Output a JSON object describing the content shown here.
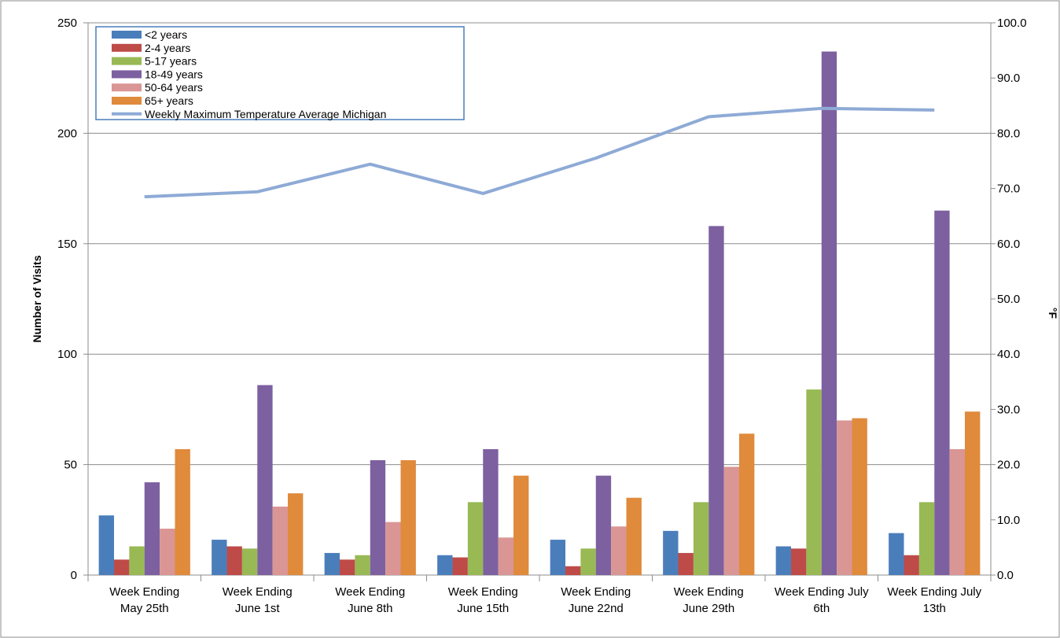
{
  "chart_data": {
    "type": "bar",
    "categories": [
      [
        "Week Ending",
        "May 25th"
      ],
      [
        "Week Ending",
        "June 1st"
      ],
      [
        "Week Ending",
        "June 8th"
      ],
      [
        "Week Ending",
        "June 15th"
      ],
      [
        "Week Ending",
        "June 22nd"
      ],
      [
        "Week Ending",
        "June 29th"
      ],
      [
        "Week Ending July",
        "6th"
      ],
      [
        "Week Ending July",
        "13th"
      ]
    ],
    "series": [
      {
        "name": "<2 years",
        "color": "#4a7ebb",
        "values": [
          27,
          16,
          10,
          9,
          16,
          20,
          13,
          19
        ]
      },
      {
        "name": "2-4 years",
        "color": "#be4b48",
        "values": [
          7,
          13,
          7,
          8,
          4,
          10,
          12,
          9
        ]
      },
      {
        "name": "5-17 years",
        "color": "#98b954",
        "values": [
          13,
          12,
          9,
          33,
          12,
          33,
          84,
          33
        ]
      },
      {
        "name": "18-49 years",
        "color": "#7d60a0",
        "values": [
          42,
          86,
          52,
          57,
          45,
          158,
          237,
          165
        ]
      },
      {
        "name": "50-64 years",
        "color": "#d99694",
        "values": [
          21,
          31,
          24,
          17,
          22,
          49,
          70,
          57
        ]
      },
      {
        "name": "65+ years",
        "color": "#e08a3c",
        "values": [
          57,
          37,
          52,
          45,
          35,
          64,
          71,
          74
        ]
      }
    ],
    "line_series": {
      "name": "Weekly Maximum Temperature Average Michigan",
      "color": "#8eaad6",
      "axis": "right",
      "values": [
        68.5,
        69.4,
        74.4,
        69.1,
        75.5,
        83.0,
        84.5,
        84.2
      ]
    },
    "ylabel": "Number of Visits",
    "y2label": "°F",
    "ylim": [
      0,
      250
    ],
    "y2lim": [
      0,
      100
    ],
    "yticks": [
      "0",
      "50",
      "100",
      "150",
      "200",
      "250"
    ],
    "y2ticks": [
      "0.0",
      "10.0",
      "20.0",
      "30.0",
      "40.0",
      "50.0",
      "60.0",
      "70.0",
      "80.0",
      "90.0",
      "100.0"
    ],
    "grid": true,
    "legend_position": "top-left"
  }
}
